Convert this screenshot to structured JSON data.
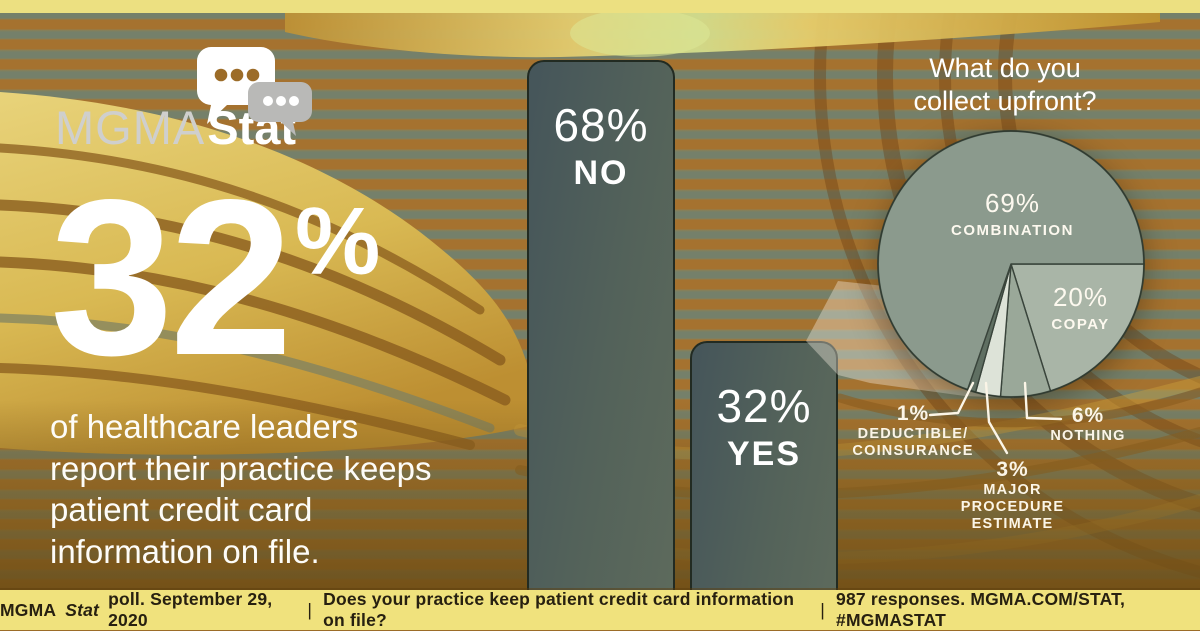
{
  "page": {
    "top_strip_color": "#ece081",
    "footer_bg": "#f0e27d",
    "accent_gold": "#d9bc5e",
    "bar_color": "#53625a",
    "text_color": "#ffffff"
  },
  "logo": {
    "brand": "MGMA",
    "product": "Stat",
    "icon": "chat-bubbles"
  },
  "headline": {
    "value": "32",
    "unit": "%",
    "description": "of healthcare leaders report their practice keeps patient credit card information on file."
  },
  "chart_data": [
    {
      "type": "bar",
      "question": "Does your practice keep patient credit card information on file?",
      "categories": [
        "NO",
        "YES"
      ],
      "values": [
        68,
        32
      ],
      "value_labels": [
        "68%",
        "32%"
      ],
      "ylim": [
        0,
        68
      ],
      "bar_color": "#53625a",
      "label_position": "inside-top"
    },
    {
      "type": "pie",
      "title": "What do you collect upfront?",
      "title_lines": [
        "What do you",
        "collect upfront?"
      ],
      "start_angle_deg": 0,
      "direction": "clockwise",
      "legend_position": "on-slice-and-callouts",
      "slices": [
        {
          "label": "COPAY",
          "pct": 20,
          "display_pct": "20%",
          "color": "#a9b5a7"
        },
        {
          "label": "NOTHING",
          "pct": 6,
          "display_pct": "6%",
          "color": "#9aa899",
          "display_lines": [
            "NOTHING"
          ]
        },
        {
          "label": "MAJOR PROCEDURE ESTIMATE",
          "pct": 3,
          "display_pct": "3%",
          "color": "#dde3d8",
          "display_lines": [
            "MAJOR",
            "PROCEDURE",
            "ESTIMATE"
          ]
        },
        {
          "label": "DEDUCTIBLE/COINSURANCE",
          "pct": 1,
          "display_pct": "1%",
          "color": "#5f6f62",
          "display_lines": [
            "DEDUCTIBLE/",
            "COINSURANCE"
          ]
        },
        {
          "label": "COMBINATION",
          "pct": 69,
          "display_pct": "69%",
          "color": "#8b9a8d"
        }
      ]
    }
  ],
  "footer": {
    "org": "MGMA",
    "poll_word_italic": "Stat",
    "poll_rest": "poll. September 29, 2020",
    "divider": "|",
    "question": "Does your practice keep patient credit card information on file?",
    "responses": "987 responses. MGMA.COM/STAT, #MGMASTAT"
  }
}
